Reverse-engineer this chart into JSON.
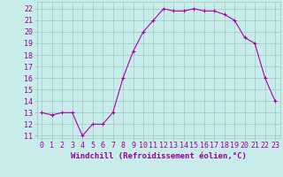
{
  "x": [
    0,
    1,
    2,
    3,
    4,
    5,
    6,
    7,
    8,
    9,
    10,
    11,
    12,
    13,
    14,
    15,
    16,
    17,
    18,
    19,
    20,
    21,
    22,
    23
  ],
  "y": [
    13,
    12.8,
    13,
    13,
    11,
    12,
    12,
    13,
    16,
    18.3,
    20,
    21,
    22,
    21.8,
    21.8,
    22,
    21.8,
    21.8,
    21.5,
    21,
    19.5,
    19,
    16,
    14
  ],
  "line_color": "#aa00aa",
  "marker": "+",
  "background_color": "#c8ecea",
  "grid_color": "#a0c8c8",
  "xlabel": "Windchill (Refroidissement éolien,°C)",
  "ylabel": "",
  "title": "",
  "xlim": [
    -0.5,
    23.5
  ],
  "ylim": [
    10.8,
    22.6
  ],
  "yticks": [
    11,
    12,
    13,
    14,
    15,
    16,
    17,
    18,
    19,
    20,
    21,
    22
  ],
  "xticks": [
    0,
    1,
    2,
    3,
    4,
    5,
    6,
    7,
    8,
    9,
    10,
    11,
    12,
    13,
    14,
    15,
    16,
    17,
    18,
    19,
    20,
    21,
    22,
    23
  ],
  "tick_label_color": "#990099",
  "xlabel_color": "#990099",
  "xlabel_fontsize": 6.5,
  "tick_fontsize": 6,
  "line_width": 0.8,
  "marker_size": 3.5,
  "marker_edge_width": 0.8
}
